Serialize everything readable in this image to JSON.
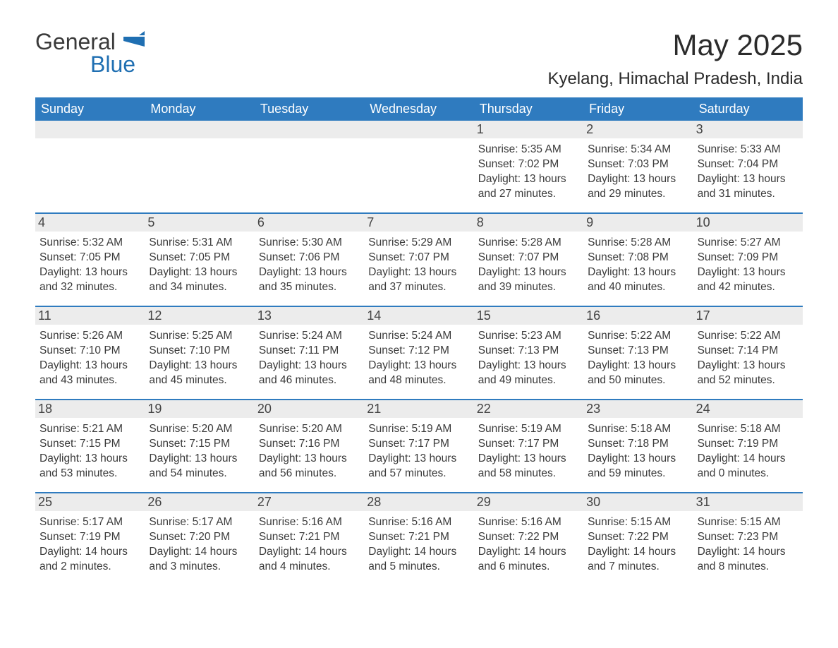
{
  "logo": {
    "word1": "General",
    "word2": "Blue",
    "flag_color": "#1f6fb2"
  },
  "title": "May 2025",
  "location": "Kyelang, Himachal Pradesh, India",
  "colors": {
    "header_bar": "#2f7bbf",
    "header_text": "#ffffff",
    "daynum_bg": "#ececec",
    "week_divider": "#2f7bbf",
    "body_text": "#3a3a3a",
    "background": "#ffffff"
  },
  "typography": {
    "title_fontsize": 42,
    "location_fontsize": 24,
    "dow_fontsize": 18,
    "daynum_fontsize": 18,
    "body_fontsize": 15.5,
    "font_family": "Arial"
  },
  "layout": {
    "columns": 7,
    "rows": 5,
    "leading_blanks": 4
  },
  "days_of_week": [
    "Sunday",
    "Monday",
    "Tuesday",
    "Wednesday",
    "Thursday",
    "Friday",
    "Saturday"
  ],
  "days": [
    {
      "n": 1,
      "sunrise": "5:35 AM",
      "sunset": "7:02 PM",
      "dl_h": 13,
      "dl_m": 27
    },
    {
      "n": 2,
      "sunrise": "5:34 AM",
      "sunset": "7:03 PM",
      "dl_h": 13,
      "dl_m": 29
    },
    {
      "n": 3,
      "sunrise": "5:33 AM",
      "sunset": "7:04 PM",
      "dl_h": 13,
      "dl_m": 31
    },
    {
      "n": 4,
      "sunrise": "5:32 AM",
      "sunset": "7:05 PM",
      "dl_h": 13,
      "dl_m": 32
    },
    {
      "n": 5,
      "sunrise": "5:31 AM",
      "sunset": "7:05 PM",
      "dl_h": 13,
      "dl_m": 34
    },
    {
      "n": 6,
      "sunrise": "5:30 AM",
      "sunset": "7:06 PM",
      "dl_h": 13,
      "dl_m": 35
    },
    {
      "n": 7,
      "sunrise": "5:29 AM",
      "sunset": "7:07 PM",
      "dl_h": 13,
      "dl_m": 37
    },
    {
      "n": 8,
      "sunrise": "5:28 AM",
      "sunset": "7:07 PM",
      "dl_h": 13,
      "dl_m": 39
    },
    {
      "n": 9,
      "sunrise": "5:28 AM",
      "sunset": "7:08 PM",
      "dl_h": 13,
      "dl_m": 40
    },
    {
      "n": 10,
      "sunrise": "5:27 AM",
      "sunset": "7:09 PM",
      "dl_h": 13,
      "dl_m": 42
    },
    {
      "n": 11,
      "sunrise": "5:26 AM",
      "sunset": "7:10 PM",
      "dl_h": 13,
      "dl_m": 43
    },
    {
      "n": 12,
      "sunrise": "5:25 AM",
      "sunset": "7:10 PM",
      "dl_h": 13,
      "dl_m": 45
    },
    {
      "n": 13,
      "sunrise": "5:24 AM",
      "sunset": "7:11 PM",
      "dl_h": 13,
      "dl_m": 46
    },
    {
      "n": 14,
      "sunrise": "5:24 AM",
      "sunset": "7:12 PM",
      "dl_h": 13,
      "dl_m": 48
    },
    {
      "n": 15,
      "sunrise": "5:23 AM",
      "sunset": "7:13 PM",
      "dl_h": 13,
      "dl_m": 49
    },
    {
      "n": 16,
      "sunrise": "5:22 AM",
      "sunset": "7:13 PM",
      "dl_h": 13,
      "dl_m": 50
    },
    {
      "n": 17,
      "sunrise": "5:22 AM",
      "sunset": "7:14 PM",
      "dl_h": 13,
      "dl_m": 52
    },
    {
      "n": 18,
      "sunrise": "5:21 AM",
      "sunset": "7:15 PM",
      "dl_h": 13,
      "dl_m": 53
    },
    {
      "n": 19,
      "sunrise": "5:20 AM",
      "sunset": "7:15 PM",
      "dl_h": 13,
      "dl_m": 54
    },
    {
      "n": 20,
      "sunrise": "5:20 AM",
      "sunset": "7:16 PM",
      "dl_h": 13,
      "dl_m": 56
    },
    {
      "n": 21,
      "sunrise": "5:19 AM",
      "sunset": "7:17 PM",
      "dl_h": 13,
      "dl_m": 57
    },
    {
      "n": 22,
      "sunrise": "5:19 AM",
      "sunset": "7:17 PM",
      "dl_h": 13,
      "dl_m": 58
    },
    {
      "n": 23,
      "sunrise": "5:18 AM",
      "sunset": "7:18 PM",
      "dl_h": 13,
      "dl_m": 59
    },
    {
      "n": 24,
      "sunrise": "5:18 AM",
      "sunset": "7:19 PM",
      "dl_h": 14,
      "dl_m": 0
    },
    {
      "n": 25,
      "sunrise": "5:17 AM",
      "sunset": "7:19 PM",
      "dl_h": 14,
      "dl_m": 2
    },
    {
      "n": 26,
      "sunrise": "5:17 AM",
      "sunset": "7:20 PM",
      "dl_h": 14,
      "dl_m": 3
    },
    {
      "n": 27,
      "sunrise": "5:16 AM",
      "sunset": "7:21 PM",
      "dl_h": 14,
      "dl_m": 4
    },
    {
      "n": 28,
      "sunrise": "5:16 AM",
      "sunset": "7:21 PM",
      "dl_h": 14,
      "dl_m": 5
    },
    {
      "n": 29,
      "sunrise": "5:16 AM",
      "sunset": "7:22 PM",
      "dl_h": 14,
      "dl_m": 6
    },
    {
      "n": 30,
      "sunrise": "5:15 AM",
      "sunset": "7:22 PM",
      "dl_h": 14,
      "dl_m": 7
    },
    {
      "n": 31,
      "sunrise": "5:15 AM",
      "sunset": "7:23 PM",
      "dl_h": 14,
      "dl_m": 8
    }
  ],
  "labels": {
    "sunrise": "Sunrise: ",
    "sunset": "Sunset: ",
    "daylight_prefix": "Daylight: ",
    "daylight_hours": " hours and ",
    "daylight_suffix": " minutes."
  }
}
